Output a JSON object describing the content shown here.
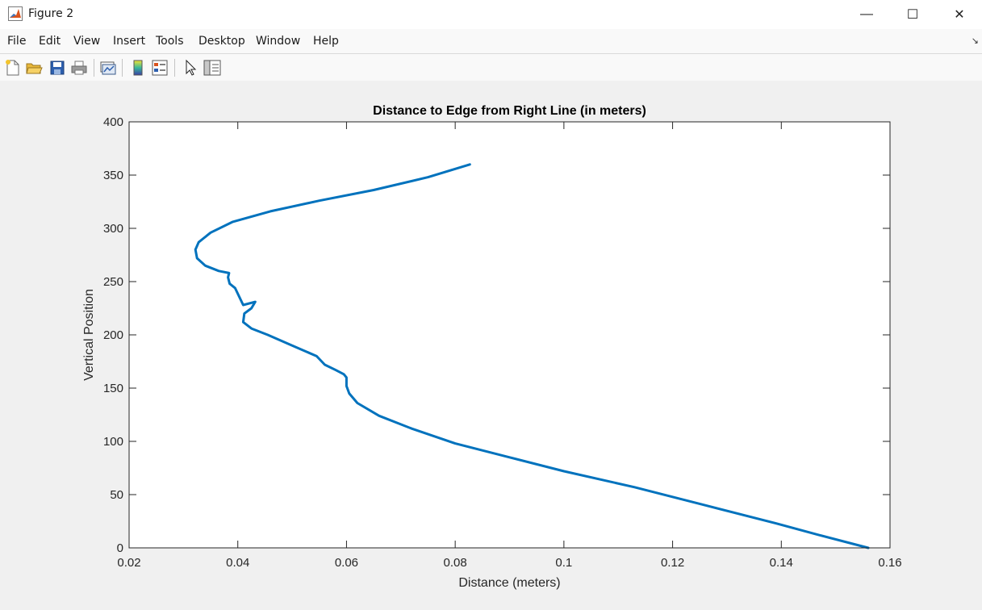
{
  "window": {
    "title": "Figure 2",
    "controls": {
      "minimize": "—",
      "maximize": "☐",
      "close": "✕"
    }
  },
  "menu": {
    "items": [
      "File",
      "Edit",
      "View",
      "Insert",
      "Tools",
      "Desktop",
      "Window",
      "Help"
    ],
    "overflow_glyph": "↘"
  },
  "toolbar": {
    "tools": [
      "new-figure-icon",
      "open-file-icon",
      "save-icon",
      "print-icon",
      "link-plot-icon",
      "insert-colorbar-icon",
      "insert-legend-icon",
      "edit-plot-icon",
      "property-inspector-icon"
    ]
  },
  "colors": {
    "line": "#0072bd",
    "axes_background": "#ffffff",
    "figure_background": "#f0f0f0"
  },
  "chart_data": {
    "type": "line",
    "title": "Distance to Edge from Right Line (in meters)",
    "xlabel": "Distance (meters)",
    "ylabel": "Vertical Position",
    "xlim": [
      0.02,
      0.16
    ],
    "ylim": [
      0,
      400
    ],
    "xticks": [
      "0.02",
      "0.04",
      "0.06",
      "0.08",
      "0.1",
      "0.12",
      "0.14",
      "0.16"
    ],
    "yticks": [
      "0",
      "50",
      "100",
      "150",
      "200",
      "250",
      "300",
      "350",
      "400"
    ],
    "grid": false,
    "box": true,
    "series": [
      {
        "x": [
          0.156,
          0.147,
          0.139,
          0.126,
          0.113,
          0.1,
          0.09,
          0.08,
          0.072,
          0.066,
          0.062,
          0.0605,
          0.06,
          0.06,
          0.0595,
          0.058,
          0.056,
          0.0545,
          0.05,
          0.0455,
          0.0425,
          0.041,
          0.0412,
          0.0425,
          0.0432,
          0.041,
          0.0395,
          0.0385,
          0.0382,
          0.0384,
          0.0365,
          0.034,
          0.0325,
          0.0322,
          0.0328,
          0.035,
          0.039,
          0.046,
          0.055,
          0.065,
          0.075,
          0.0827
        ],
        "y": [
          0,
          12,
          23,
          40,
          57,
          72,
          85,
          98,
          112,
          124,
          136,
          145,
          152,
          160,
          163,
          167,
          172,
          180,
          190,
          200,
          206,
          212,
          220,
          225,
          231,
          228,
          244,
          248,
          254,
          258,
          260,
          265,
          272,
          280,
          287,
          296,
          306,
          316,
          326,
          336,
          348,
          360
        ]
      }
    ]
  }
}
